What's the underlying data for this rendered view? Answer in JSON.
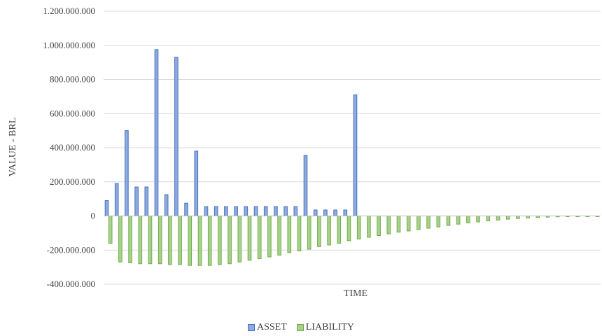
{
  "chart_data": {
    "type": "bar",
    "xlabel": "TIME",
    "ylabel": "VALUE - BRL",
    "ylim": [
      -400000000,
      1200000000
    ],
    "yticks": [
      1200000000,
      1000000000,
      800000000,
      600000000,
      400000000,
      200000000,
      0,
      -200000000,
      -400000000
    ],
    "ytick_labels": [
      "1.200.000.000",
      "1.000.000.000",
      "800.000.000",
      "600.000.000",
      "400.000.000",
      "200.000.000",
      "0",
      "-200.000.000",
      "-400.000.000"
    ],
    "grid": true,
    "legend_position": "bottom",
    "colors": {
      "asset_fill": "#8FAADC",
      "asset_edge": "#4472C4",
      "liability_fill": "#A9D18E",
      "liability_edge": "#70AD47",
      "grid": "#d9d9d9"
    },
    "series": [
      {
        "name": "ASSET",
        "values": [
          90000000,
          190000000,
          500000000,
          170000000,
          170000000,
          975000000,
          125000000,
          930000000,
          75000000,
          380000000,
          55000000,
          55000000,
          55000000,
          55000000,
          55000000,
          55000000,
          55000000,
          55000000,
          55000000,
          55000000,
          355000000,
          35000000,
          35000000,
          35000000,
          35000000,
          710000000,
          0,
          0,
          0,
          0,
          0,
          0,
          0,
          0,
          0,
          0,
          0,
          0,
          0,
          0,
          0,
          0,
          0,
          0,
          0,
          0,
          0,
          0,
          0,
          0
        ]
      },
      {
        "name": "LIABILITY",
        "values": [
          -160000000,
          -270000000,
          -275000000,
          -280000000,
          -280000000,
          -280000000,
          -285000000,
          -285000000,
          -290000000,
          -290000000,
          -290000000,
          -285000000,
          -280000000,
          -270000000,
          -260000000,
          -250000000,
          -240000000,
          -230000000,
          -215000000,
          -205000000,
          -195000000,
          -180000000,
          -170000000,
          -160000000,
          -145000000,
          -135000000,
          -125000000,
          -115000000,
          -105000000,
          -95000000,
          -88000000,
          -80000000,
          -72000000,
          -64000000,
          -56000000,
          -48000000,
          -41000000,
          -35000000,
          -29000000,
          -24000000,
          -19000000,
          -15000000,
          -12000000,
          -9000000,
          -7000000,
          -5000000,
          -4000000,
          -3000000,
          -2000000,
          -1000000
        ]
      }
    ]
  }
}
